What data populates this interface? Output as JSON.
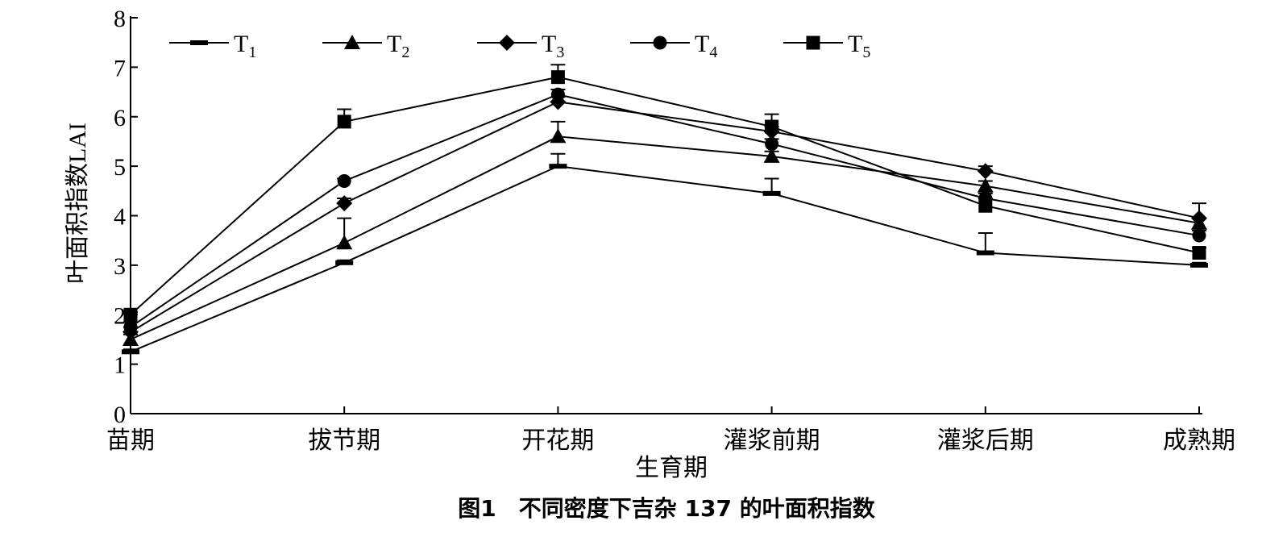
{
  "chart_data": {
    "type": "line",
    "xlabel": "生育期",
    "ylabel": "叶面积指数LAI",
    "ylim": [
      0,
      8
    ],
    "yticks": [
      0,
      1,
      2,
      3,
      4,
      5,
      6,
      7,
      8
    ],
    "categories": [
      "苗期",
      "拔节期",
      "开花期",
      "灌浆前期",
      "灌浆后期",
      "成熟期"
    ],
    "legend_position": "top-left",
    "grid": false,
    "series": [
      {
        "name": "T",
        "sub": "1",
        "marker": "dash",
        "values": [
          1.25,
          3.05,
          5.0,
          4.45,
          3.25,
          3.0
        ],
        "errors": [
          0.05,
          0.05,
          0.25,
          0.3,
          0.4,
          0.05
        ]
      },
      {
        "name": "T",
        "sub": "2",
        "marker": "triangle",
        "values": [
          1.5,
          3.45,
          5.6,
          5.2,
          4.6,
          3.85
        ],
        "errors": [
          0.1,
          0.5,
          0.3,
          0.1,
          0.1,
          0.1
        ]
      },
      {
        "name": "T",
        "sub": "3",
        "marker": "diamond",
        "values": [
          1.65,
          4.25,
          6.3,
          5.7,
          4.9,
          3.95
        ],
        "errors": [
          0.1,
          0.1,
          0.1,
          0.1,
          0.1,
          0.3
        ]
      },
      {
        "name": "T",
        "sub": "4",
        "marker": "circle",
        "values": [
          1.75,
          4.7,
          6.45,
          5.45,
          4.35,
          3.6
        ],
        "errors": [
          0.1,
          0.05,
          0.1,
          0.1,
          0.1,
          0.1
        ]
      },
      {
        "name": "T",
        "sub": "5",
        "marker": "square",
        "values": [
          2.0,
          5.9,
          6.8,
          5.8,
          4.2,
          3.25
        ],
        "errors": [
          0.05,
          0.25,
          0.25,
          0.25,
          0.15,
          0.1
        ]
      }
    ],
    "caption": "图1　不同密度下吉杂 137 的叶面积指数"
  }
}
